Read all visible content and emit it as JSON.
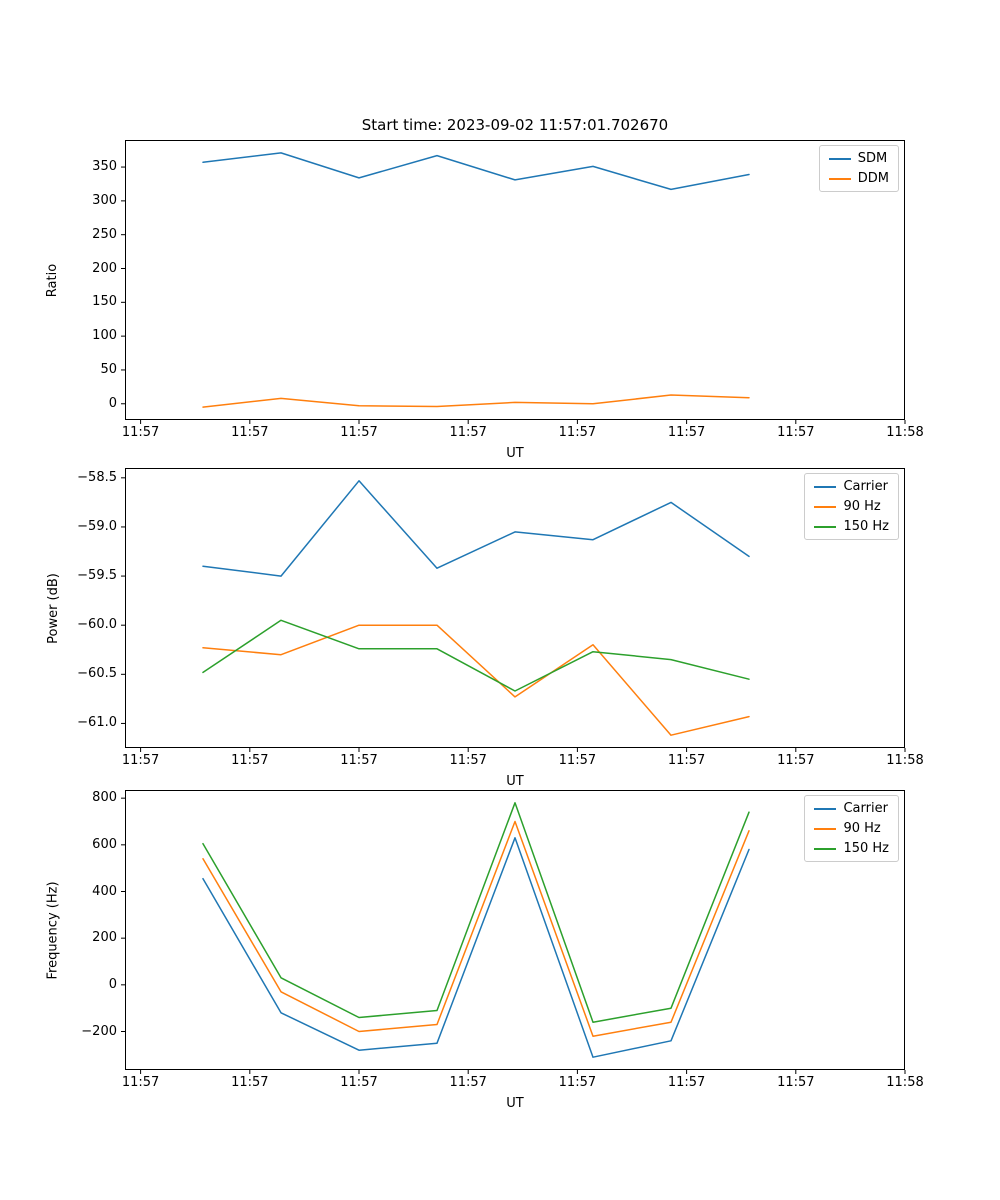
{
  "figure": {
    "background": "#ffffff",
    "axis_color": "#000000"
  },
  "chart_data": [
    {
      "type": "line",
      "title": "Start time: 2023-09-02 11:57:01.702670",
      "xlabel": "UT",
      "ylabel": "Ratio",
      "grid": false,
      "legend_position": "top-right",
      "xlim": [
        0,
        10
      ],
      "ylim": [
        -24,
        390
      ],
      "x_tick_pos": [
        0.2,
        1.6,
        3.0,
        4.4,
        5.8,
        7.2,
        8.6,
        10.0
      ],
      "x_tick_labels": [
        "11:57",
        "11:57",
        "11:57",
        "11:57",
        "11:57",
        "11:57",
        "11:57",
        "11:58"
      ],
      "y_ticks": [
        0,
        50,
        100,
        150,
        200,
        250,
        300,
        350
      ],
      "y_tick_labels": [
        "0",
        "50",
        "100",
        "150",
        "200",
        "250",
        "300",
        "350"
      ],
      "x": [
        1,
        2,
        3,
        4,
        5,
        6,
        7,
        8
      ],
      "series": [
        {
          "name": "SDM",
          "color": "#1f77b4",
          "values": [
            357,
            371,
            334,
            367,
            331,
            351,
            317,
            339
          ]
        },
        {
          "name": "DDM",
          "color": "#ff7f0e",
          "values": [
            -5,
            8,
            -3,
            -4,
            2,
            0,
            13,
            9
          ]
        }
      ]
    },
    {
      "type": "line",
      "title": "",
      "xlabel": "UT",
      "ylabel": "Power (dB)",
      "grid": false,
      "legend_position": "top-right",
      "xlim": [
        0,
        10
      ],
      "ylim": [
        -61.25,
        -58.4
      ],
      "x_tick_pos": [
        0.2,
        1.6,
        3.0,
        4.4,
        5.8,
        7.2,
        8.6,
        10.0
      ],
      "x_tick_labels": [
        "11:57",
        "11:57",
        "11:57",
        "11:57",
        "11:57",
        "11:57",
        "11:57",
        "11:58"
      ],
      "y_ticks": [
        -61.0,
        -60.5,
        -60.0,
        -59.5,
        -59.0,
        -58.5
      ],
      "y_tick_labels": [
        "−61.0",
        "−60.5",
        "−60.0",
        "−59.5",
        "−59.0",
        "−58.5"
      ],
      "x": [
        1,
        2,
        3,
        4,
        5,
        6,
        7,
        8
      ],
      "series": [
        {
          "name": "Carrier",
          "color": "#1f77b4",
          "values": [
            -59.4,
            -59.5,
            -58.53,
            -59.42,
            -59.05,
            -59.13,
            -58.75,
            -59.3
          ]
        },
        {
          "name": "90 Hz",
          "color": "#ff7f0e",
          "values": [
            -60.23,
            -60.3,
            -60.0,
            -60.0,
            -60.73,
            -60.2,
            -61.12,
            -60.93
          ]
        },
        {
          "name": "150 Hz",
          "color": "#2ca02c",
          "values": [
            -60.48,
            -59.95,
            -60.24,
            -60.24,
            -60.67,
            -60.27,
            -60.35,
            -60.55
          ]
        }
      ]
    },
    {
      "type": "line",
      "title": "",
      "xlabel": "UT",
      "ylabel": "Frequency (Hz)",
      "grid": false,
      "legend_position": "top-right",
      "xlim": [
        0,
        10
      ],
      "ylim": [
        -365,
        835
      ],
      "x_tick_pos": [
        0.2,
        1.6,
        3.0,
        4.4,
        5.8,
        7.2,
        8.6,
        10.0
      ],
      "x_tick_labels": [
        "11:57",
        "11:57",
        "11:57",
        "11:57",
        "11:57",
        "11:57",
        "11:57",
        "11:58"
      ],
      "y_ticks": [
        -200,
        0,
        200,
        400,
        600,
        800
      ],
      "y_tick_labels": [
        "−200",
        "0",
        "200",
        "400",
        "600",
        "800"
      ],
      "x": [
        1,
        2,
        3,
        4,
        5,
        6,
        7,
        8
      ],
      "series": [
        {
          "name": "Carrier",
          "color": "#1f77b4",
          "values": [
            455,
            -120,
            -280,
            -250,
            630,
            -310,
            -240,
            580
          ]
        },
        {
          "name": "90 Hz",
          "color": "#ff7f0e",
          "values": [
            540,
            -30,
            -200,
            -170,
            700,
            -220,
            -160,
            660
          ]
        },
        {
          "name": "150 Hz",
          "color": "#2ca02c",
          "values": [
            605,
            30,
            -140,
            -110,
            780,
            -160,
            -100,
            740
          ]
        }
      ]
    }
  ]
}
